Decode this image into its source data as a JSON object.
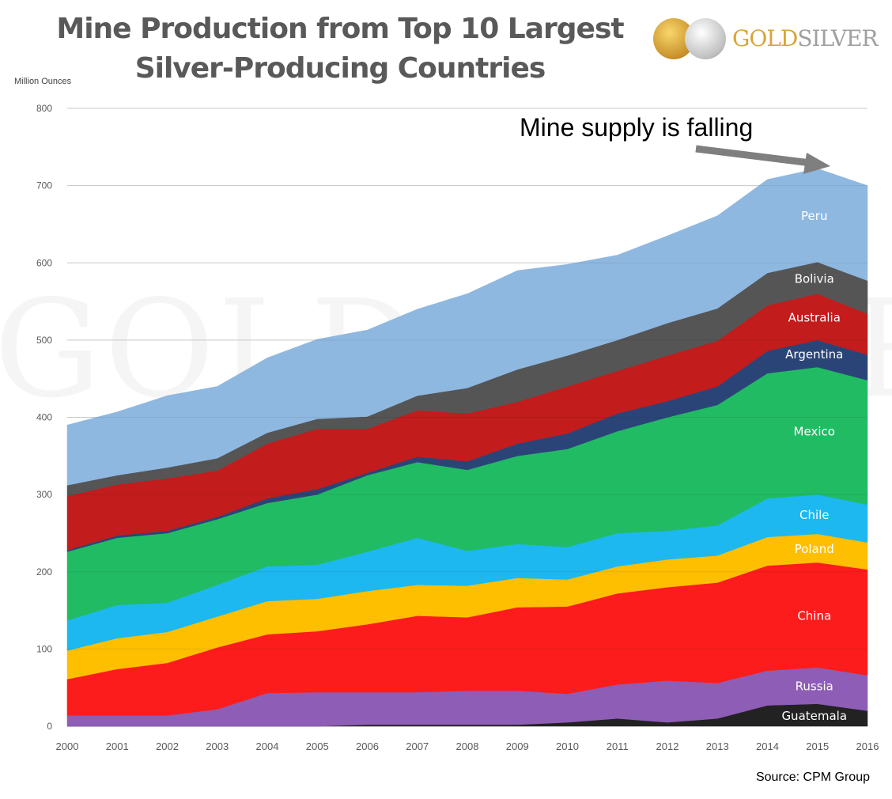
{
  "chart_data": {
    "type": "area",
    "stacked": true,
    "title": "Mine Production from Top 10 Largest Silver-Producing  Countries",
    "ylabel": "Million Ounces",
    "xlabel": "",
    "ylim": [
      0,
      800
    ],
    "yticks": [
      0,
      100,
      200,
      300,
      400,
      500,
      600,
      700,
      800
    ],
    "grid": true,
    "x": [
      2000,
      2001,
      2002,
      2003,
      2004,
      2005,
      2006,
      2007,
      2008,
      2009,
      2010,
      2011,
      2012,
      2013,
      2014,
      2015,
      2016
    ],
    "series": [
      {
        "name": "Guatemala",
        "color": "#222222",
        "values": [
          0,
          0,
          0,
          0,
          0,
          0,
          2,
          2,
          2,
          2,
          5,
          10,
          5,
          10,
          27,
          29,
          20
        ]
      },
      {
        "name": "Russia",
        "color": "#8e5db5",
        "values": [
          14,
          14,
          14,
          22,
          43,
          44,
          42,
          42,
          44,
          44,
          37,
          44,
          54,
          46,
          45,
          47,
          46
        ]
      },
      {
        "name": "China",
        "color": "#fc1c1c",
        "values": [
          47,
          60,
          68,
          80,
          76,
          79,
          88,
          99,
          95,
          108,
          113,
          118,
          121,
          130,
          136,
          136,
          137
        ]
      },
      {
        "name": "Poland",
        "color": "#fdbf00",
        "values": [
          37,
          40,
          40,
          40,
          43,
          42,
          43,
          40,
          41,
          38,
          35,
          35,
          36,
          35,
          37,
          37,
          35
        ]
      },
      {
        "name": "Chile",
        "color": "#1cb8ef",
        "values": [
          39,
          43,
          38,
          41,
          45,
          44,
          51,
          61,
          45,
          44,
          42,
          43,
          37,
          39,
          50,
          51,
          49
        ]
      },
      {
        "name": "Mexico",
        "color": "#21bb64",
        "values": [
          89,
          87,
          90,
          85,
          82,
          91,
          99,
          98,
          105,
          114,
          127,
          132,
          147,
          156,
          162,
          165,
          161
        ]
      },
      {
        "name": "Argentina",
        "color": "#2b4478",
        "values": [
          2,
          3,
          3,
          3,
          6,
          7,
          3,
          7,
          11,
          16,
          20,
          23,
          21,
          24,
          29,
          35,
          33
        ]
      },
      {
        "name": "Australia",
        "color": "#c21c1c",
        "values": [
          70,
          66,
          68,
          60,
          71,
          78,
          57,
          60,
          62,
          54,
          61,
          55,
          59,
          59,
          59,
          60,
          53
        ]
      },
      {
        "name": "Bolivia",
        "color": "#555555",
        "values": [
          14,
          12,
          14,
          16,
          14,
          13,
          16,
          19,
          33,
          42,
          40,
          40,
          42,
          42,
          42,
          41,
          43
        ]
      },
      {
        "name": "Peru",
        "color": "#8fb8e0",
        "values": [
          78,
          82,
          93,
          93,
          97,
          103,
          112,
          112,
          122,
          128,
          118,
          110,
          113,
          120,
          121,
          121,
          123
        ]
      }
    ],
    "annotation": "Mine supply is falling",
    "source": "Source: CPM Group"
  },
  "logo": {
    "gold": "GOLD",
    "silver": "SILVER",
    "watermark": "GOLDSILVER"
  }
}
